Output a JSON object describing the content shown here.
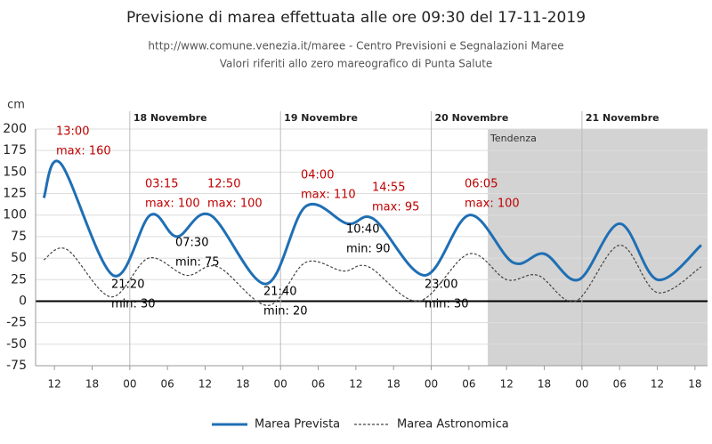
{
  "chart_data": {
    "type": "line",
    "title": "Previsione di marea effettuata alle ore 09:30 del 17-11-2019",
    "subtitle": [
      "http://www.comune.venezia.it/maree - Centro Previsioni e Segnalazioni Maree",
      "Valori riferiti allo zero mareografico di Punta Salute"
    ],
    "y_unit": "cm",
    "xlim": [
      9,
      116
    ],
    "xticks": [
      {
        "value": 12,
        "label": "12"
      },
      {
        "value": 18,
        "label": "18"
      },
      {
        "value": 24,
        "label": "00"
      },
      {
        "value": 30,
        "label": "06"
      },
      {
        "value": 36,
        "label": "12"
      },
      {
        "value": 42,
        "label": "18"
      },
      {
        "value": 48,
        "label": "00"
      },
      {
        "value": 54,
        "label": "06"
      },
      {
        "value": 60,
        "label": "12"
      },
      {
        "value": 66,
        "label": "18"
      },
      {
        "value": 72,
        "label": "00"
      },
      {
        "value": 78,
        "label": "06"
      },
      {
        "value": 84,
        "label": "12"
      },
      {
        "value": 90,
        "label": "18"
      },
      {
        "value": 96,
        "label": "00"
      },
      {
        "value": 102,
        "label": "06"
      },
      {
        "value": 108,
        "label": "12"
      },
      {
        "value": 114,
        "label": "18"
      }
    ],
    "ylim": [
      -75,
      200
    ],
    "yticks": [
      -75,
      -50,
      -25,
      0,
      25,
      50,
      75,
      100,
      125,
      150,
      175,
      200
    ],
    "grid": true,
    "days": [
      {
        "label": "18 Novembre",
        "x": 24
      },
      {
        "label": "19 Novembre",
        "x": 48
      },
      {
        "label": "20 Novembre",
        "x": 72
      },
      {
        "label": "21 Novembre",
        "x": 96
      }
    ],
    "tendenza": {
      "label": "Tendenza",
      "start": 81,
      "color": "#d3d3d3"
    },
    "series": [
      {
        "name": "Marea Prevista",
        "color": "#1f6fb4",
        "style": "solid",
        "x": [
          10.3,
          13,
          21.33,
          27.25,
          31.5,
          36.83,
          45.67,
          52,
          58.67,
          62.92,
          71,
          78.08,
          85,
          90,
          95.5,
          102,
          108,
          115
        ],
        "values": [
          120,
          160,
          30,
          100,
          75,
          100,
          20,
          110,
          90,
          95,
          30,
          100,
          45,
          55,
          25,
          90,
          25,
          65
        ]
      },
      {
        "name": "Marea Astronomica",
        "color": "#444444",
        "style": "dashed",
        "x": [
          10.3,
          14,
          21,
          27,
          33,
          38,
          46,
          52,
          58,
          62,
          70,
          78,
          84,
          89,
          95,
          102,
          108,
          115
        ],
        "values": [
          48,
          60,
          5,
          50,
          30,
          40,
          -5,
          45,
          35,
          40,
          0,
          55,
          25,
          30,
          0,
          65,
          10,
          40
        ]
      }
    ],
    "annotations": [
      {
        "time": "13:00",
        "text": "max: 160",
        "color": "#c00000"
      },
      {
        "time": "03:15",
        "text": "max: 100",
        "color": "#c00000"
      },
      {
        "time": "12:50",
        "text": "max: 100",
        "color": "#c00000"
      },
      {
        "time": "04:00",
        "text": "max: 110",
        "color": "#c00000"
      },
      {
        "time": "14:55",
        "text": "max: 95",
        "color": "#c00000"
      },
      {
        "time": "06:05",
        "text": "max: 100",
        "color": "#c00000"
      },
      {
        "time": "21:20",
        "text": "min: 30",
        "color": "#000000"
      },
      {
        "time": "07:30",
        "text": "min: 75",
        "color": "#000000"
      },
      {
        "time": "21:40",
        "text": "min: 20",
        "color": "#000000"
      },
      {
        "time": "10:40",
        "text": "min: 90",
        "color": "#000000"
      },
      {
        "time": "23:00",
        "text": "min: 30",
        "color": "#000000"
      }
    ]
  }
}
